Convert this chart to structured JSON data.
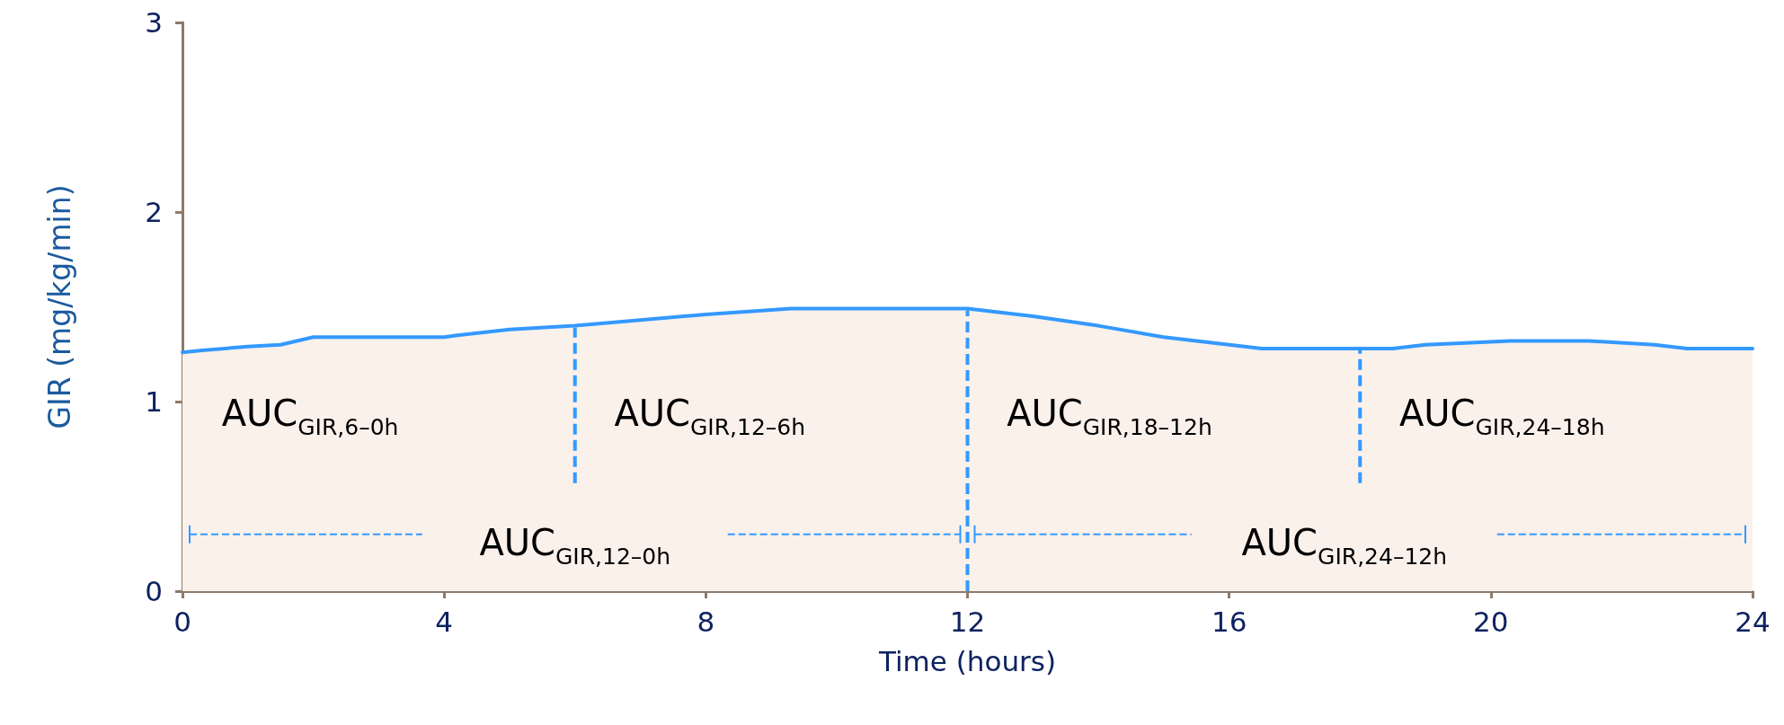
{
  "chart_data": {
    "type": "area",
    "xlabel": "Time (hours)",
    "ylabel": "GIR (mg/kg/min)",
    "xlim": [
      0,
      24
    ],
    "xticks": [
      0,
      4,
      8,
      12,
      16,
      20,
      24
    ],
    "ylim": [
      0,
      3
    ],
    "yticks": [
      0,
      1,
      2,
      3
    ],
    "grid": false,
    "marker": "none",
    "line_style": "solid",
    "series": [
      {
        "color": "#3399ff",
        "x": [
          0,
          0.3,
          1,
          1.5,
          2,
          4,
          4.2,
          5,
          6,
          7,
          8,
          9.3,
          12,
          12.5,
          13,
          14,
          15,
          16,
          16.5,
          18.5,
          19,
          20.3,
          21.5,
          22.5,
          23,
          24
        ],
        "values": [
          1.26,
          1.27,
          1.29,
          1.3,
          1.34,
          1.34,
          1.35,
          1.38,
          1.4,
          1.43,
          1.46,
          1.49,
          1.49,
          1.47,
          1.45,
          1.4,
          1.34,
          1.3,
          1.28,
          1.28,
          1.3,
          1.32,
          1.32,
          1.3,
          1.28,
          1.28
        ]
      }
    ],
    "ref_lines": [
      {
        "axis": "x",
        "value": 6,
        "color": "#3399ff",
        "line_style": "dashed"
      },
      {
        "axis": "x",
        "value": 12,
        "color": "#3399ff",
        "line_style": "dashed"
      },
      {
        "axis": "x",
        "value": 18,
        "color": "#3399ff",
        "line_style": "dashed"
      }
    ],
    "annotations": [
      "AUC$_{GIR,6–0h}$",
      "AUC$_{GIR,12–6h}$",
      "AUC$_{GIR,18–12h}$",
      "AUC$_{GIR,24–18h}$",
      "AUC$_{GIR,12–0h}$",
      "AUC$_{GIR,24–12h}$"
    ]
  }
}
